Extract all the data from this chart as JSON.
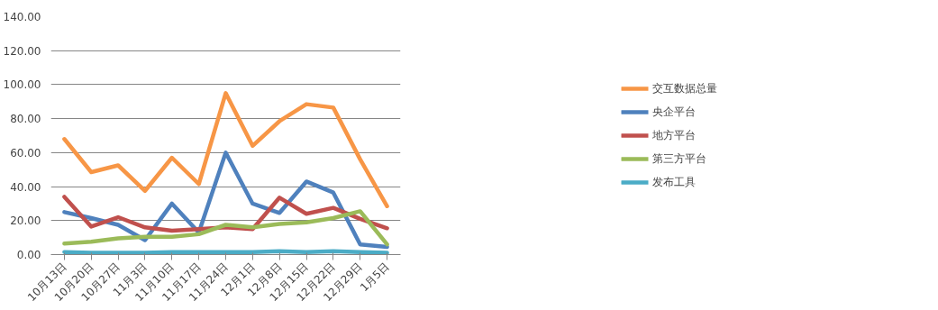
{
  "chart_data": {
    "type": "line",
    "categories": [
      "10月13日",
      "10月20日",
      "10月27日",
      "11月3日",
      "11月10日",
      "11月17日",
      "11月24日",
      "12月1日",
      "12月8日",
      "12月15日",
      "12月22日",
      "12月29日",
      "1月5日"
    ],
    "series": [
      {
        "name": "交互数据总量",
        "color": "#f79646",
        "values": [
          68,
          48.5,
          52.5,
          37.5,
          57,
          41.5,
          95,
          64,
          78.5,
          88.5,
          86.5,
          56,
          28.5
        ]
      },
      {
        "name": "央企平台",
        "color": "#4f81bd",
        "values": [
          25,
          21.5,
          17.5,
          8.5,
          30,
          13,
          60,
          30,
          24.5,
          43,
          36.5,
          6,
          4.5
        ]
      },
      {
        "name": "地方平台",
        "color": "#c0504d",
        "values": [
          34,
          16.5,
          22,
          16,
          14,
          15,
          16,
          15,
          33.5,
          24,
          27.5,
          21,
          15.5
        ]
      },
      {
        "name": "第三方平台",
        "color": "#9bbb59",
        "values": [
          6.5,
          7.5,
          9.5,
          10.5,
          10.5,
          12,
          17.5,
          16,
          18,
          19,
          21.5,
          25.5,
          6
        ]
      },
      {
        "name": "发布工具",
        "color": "#4bacc6",
        "values": [
          1.5,
          1,
          1,
          1,
          1.5,
          1.5,
          1.5,
          1.5,
          2,
          1.5,
          2,
          1.5,
          1
        ]
      }
    ],
    "ylim": [
      0,
      140
    ],
    "yticks": [
      {
        "value": 0,
        "label": "0.00"
      },
      {
        "value": 20,
        "label": "20.00"
      },
      {
        "value": 40,
        "label": "40.00"
      },
      {
        "value": 60,
        "label": "60.00"
      },
      {
        "value": 80,
        "label": "80.00"
      },
      {
        "value": 100,
        "label": "100.00"
      },
      {
        "value": 120,
        "label": "120.00"
      },
      {
        "value": 140,
        "label": "140.00"
      }
    ],
    "grid": "y",
    "legend": "right",
    "marker": "none",
    "line_style": "solid"
  }
}
